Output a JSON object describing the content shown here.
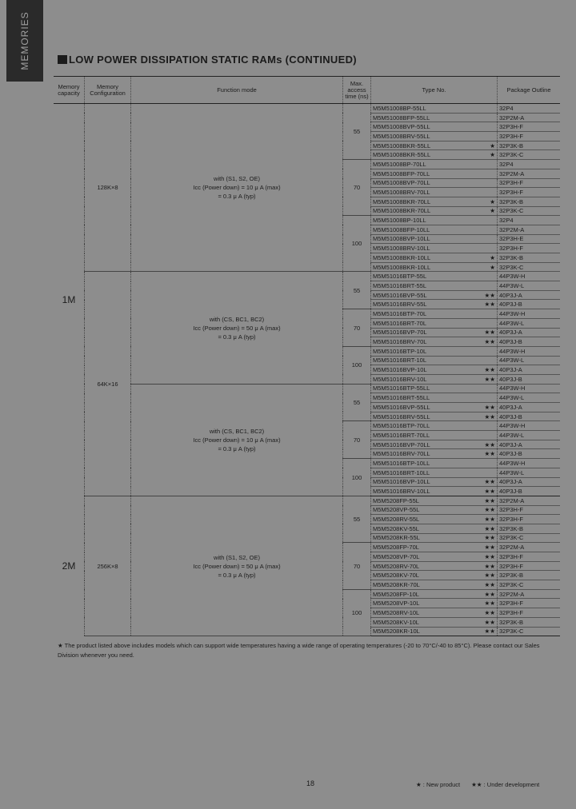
{
  "sidebar": "MEMORIES",
  "title": "LOW POWER DISSIPATION STATIC RAMs (CONTINUED)",
  "headers": {
    "capacity": "Memory capacity",
    "configuration": "Memory Configuration",
    "function": "Function mode",
    "time": "Max. access time (ns)",
    "type": "Type No.",
    "package": "Package Outline"
  },
  "memory": {
    "groups": [
      {
        "capacity": "1M",
        "configs": [
          {
            "configuration": "128K×8",
            "functions": [
              {
                "mode": [
                  "with (S1, S2, OE)",
                  "Icc (Power down) = 10 μ A (max)",
                  "= 0.3 μ A (typ)"
                ],
                "times": [
                  {
                    "time": "55",
                    "rows": [
                      {
                        "type": "M5M51008BP-55LL",
                        "package": "32P4"
                      },
                      {
                        "type": "M5M51008BFP-55LL",
                        "package": "32P2M-A"
                      },
                      {
                        "type": "M5M51008BVP-55LL",
                        "package": "32P3H-F"
                      },
                      {
                        "type": "M5M51008BRV-55LL",
                        "package": "32P3H-F"
                      },
                      {
                        "type": "M5M51008BKR-55LL",
                        "mark": "★",
                        "package": "32P3K-B"
                      },
                      {
                        "type": "M5M51008BKR-55LL",
                        "mark": "★",
                        "package": "32P3K-C"
                      }
                    ]
                  },
                  {
                    "time": "70",
                    "rows": [
                      {
                        "type": "M5M51008BP-70LL",
                        "package": "32P4"
                      },
                      {
                        "type": "M5M51008BFP-70LL",
                        "package": "32P2M-A"
                      },
                      {
                        "type": "M5M51008BVP-70LL",
                        "package": "32P3H-F"
                      },
                      {
                        "type": "M5M51008BRV-70LL",
                        "package": "32P3H-F"
                      },
                      {
                        "type": "M5M51008BKR-70LL",
                        "mark": "★",
                        "package": "32P3K-B"
                      },
                      {
                        "type": "M5M51008BKR-70LL",
                        "mark": "★",
                        "package": "32P3K-C"
                      }
                    ]
                  },
                  {
                    "time": "100",
                    "rows": [
                      {
                        "type": "M5M51008BP-10LL",
                        "package": "32P4"
                      },
                      {
                        "type": "M5M51008BFP-10LL",
                        "package": "32P2M-A"
                      },
                      {
                        "type": "M5M51008BVP-10LL",
                        "package": "32P3H-E"
                      },
                      {
                        "type": "M5M51008BRV-10LL",
                        "package": "32P3H-F"
                      },
                      {
                        "type": "M5M51008BKR-10LL",
                        "mark": "★",
                        "package": "32P3K-B"
                      },
                      {
                        "type": "M5M51008BKR-10LL",
                        "mark": "★",
                        "package": "32P3K-C"
                      }
                    ]
                  }
                ]
              }
            ]
          },
          {
            "configuration": "64K×16",
            "functions": [
              {
                "mode": [
                  "with (CS, BC1, BC2)",
                  "Icc (Power down) = 50 μ A (max)",
                  "= 0.3 μ A (typ)"
                ],
                "times": [
                  {
                    "time": "55",
                    "rows": [
                      {
                        "type": "M5M51016BTP-55L",
                        "package": "44P3W-H"
                      },
                      {
                        "type": "M5M51016BRT-55L",
                        "package": "44P3W-L"
                      },
                      {
                        "type": "M5M51016BVP-55L",
                        "mark": "★★",
                        "package": "40P3J-A"
                      },
                      {
                        "type": "M5M51016BRV-55L",
                        "mark": "★★",
                        "package": "40P3J-B"
                      }
                    ]
                  },
                  {
                    "time": "70",
                    "rows": [
                      {
                        "type": "M5M51016BTP-70L",
                        "package": "44P3W-H"
                      },
                      {
                        "type": "M5M51016BRT-70L",
                        "package": "44P3W-L"
                      },
                      {
                        "type": "M5M51016BVP-70L",
                        "mark": "★★",
                        "package": "40P3J-A"
                      },
                      {
                        "type": "M5M51016BRV-70L",
                        "mark": "★★",
                        "package": "40P3J-B"
                      }
                    ]
                  },
                  {
                    "time": "100",
                    "rows": [
                      {
                        "type": "M5M51016BTP-10L",
                        "package": "44P3W-H"
                      },
                      {
                        "type": "M5M51016BRT-10L",
                        "package": "44P3W-L"
                      },
                      {
                        "type": "M5M51016BVP-10L",
                        "mark": "★★",
                        "package": "40P3J-A"
                      },
                      {
                        "type": "M5M51016BRV-10L",
                        "mark": "★★",
                        "package": "40P3J-B"
                      }
                    ]
                  }
                ]
              },
              {
                "mode": [
                  "with (CS, BC1, BC2)",
                  "Icc (Power down) = 10 μ A (max)",
                  "= 0.3 μ A (typ)"
                ],
                "times": [
                  {
                    "time": "55",
                    "rows": [
                      {
                        "type": "M5M51016BTP-55LL",
                        "package": "44P3W-H"
                      },
                      {
                        "type": "M5M51016BRT-55LL",
                        "package": "44P3W-L"
                      },
                      {
                        "type": "M5M51016BVP-55LL",
                        "mark": "★★",
                        "package": "40P3J-A"
                      },
                      {
                        "type": "M5M51016BRV-55LL",
                        "mark": "★★",
                        "package": "40P3J-B"
                      }
                    ]
                  },
                  {
                    "time": "70",
                    "rows": [
                      {
                        "type": "M5M51016BTP-70LL",
                        "package": "44P3W-H"
                      },
                      {
                        "type": "M5M51016BRT-70LL",
                        "package": "44P3W-L"
                      },
                      {
                        "type": "M5M51016BVP-70LL",
                        "mark": "★★",
                        "package": "40P3J-A"
                      },
                      {
                        "type": "M5M51016BRV-70LL",
                        "mark": "★★",
                        "package": "40P3J-B"
                      }
                    ]
                  },
                  {
                    "time": "100",
                    "rows": [
                      {
                        "type": "M5M51016BTP-10LL",
                        "package": "44P3W-H"
                      },
                      {
                        "type": "M5M51016BRT-10LL",
                        "package": "44P3W-L"
                      },
                      {
                        "type": "M5M51016BVP-10LL",
                        "mark": "★★",
                        "package": "40P3J-A"
                      },
                      {
                        "type": "M5M51016BRV-10LL",
                        "mark": "★★",
                        "package": "40P3J-B"
                      }
                    ]
                  }
                ]
              }
            ]
          }
        ]
      },
      {
        "capacity": "2M",
        "configs": [
          {
            "configuration": "256K×8",
            "functions": [
              {
                "mode": [
                  "with (S1, S2, OE)",
                  "Icc (Power down) = 50 μ A (max)",
                  "= 0.3 μ A (typ)"
                ],
                "times": [
                  {
                    "time": "55",
                    "rows": [
                      {
                        "type": "M5M5208FP-55L",
                        "mark": "★★",
                        "package": "32P2M-A"
                      },
                      {
                        "type": "M5M5208VP-55L",
                        "mark": "★★",
                        "package": "32P3H-F"
                      },
                      {
                        "type": "M5M5208RV-55L",
                        "mark": "★★",
                        "package": "32P3H-F"
                      },
                      {
                        "type": "M5M5208KV-55L",
                        "mark": "★★",
                        "package": "32P3K-B"
                      },
                      {
                        "type": "M5M5208KR-55L",
                        "mark": "★★",
                        "package": "32P3K-C"
                      }
                    ]
                  },
                  {
                    "time": "70",
                    "rows": [
                      {
                        "type": "M5M5208FP-70L",
                        "mark": "★★",
                        "package": "32P2M-A"
                      },
                      {
                        "type": "M5M5208VP-70L",
                        "mark": "★★",
                        "package": "32P3H-F"
                      },
                      {
                        "type": "M5M5208RV-70L",
                        "mark": "★★",
                        "package": "32P3H-F"
                      },
                      {
                        "type": "M5M5208KV-70L",
                        "mark": "★★",
                        "package": "32P3K-B"
                      },
                      {
                        "type": "M5M5208KR-70L",
                        "mark": "★★",
                        "package": "32P3K-C"
                      }
                    ]
                  },
                  {
                    "time": "100",
                    "rows": [
                      {
                        "type": "M5M5208FP-10L",
                        "mark": "★★",
                        "package": "32P2M-A"
                      },
                      {
                        "type": "M5M5208VP-10L",
                        "mark": "★★",
                        "package": "32P3H-F"
                      },
                      {
                        "type": "M5M5208RV-10L",
                        "mark": "★★",
                        "package": "32P3H-F"
                      },
                      {
                        "type": "M5M5208KV-10L",
                        "mark": "★★",
                        "package": "32P3K-B"
                      },
                      {
                        "type": "M5M5208KR-10L",
                        "mark": "★★",
                        "package": "32P3K-C"
                      }
                    ]
                  }
                ]
              }
            ]
          }
        ]
      }
    ]
  },
  "footnote": "★ The product listed above includes models which can support wide temperatures having a wide range of operating temperatures (-20 to 70°C/-40 to 85°C). Please contact our Sales Division whenever you need.",
  "page_number": "18",
  "legend": [
    "★ : New product",
    "★★ : Under development"
  ]
}
